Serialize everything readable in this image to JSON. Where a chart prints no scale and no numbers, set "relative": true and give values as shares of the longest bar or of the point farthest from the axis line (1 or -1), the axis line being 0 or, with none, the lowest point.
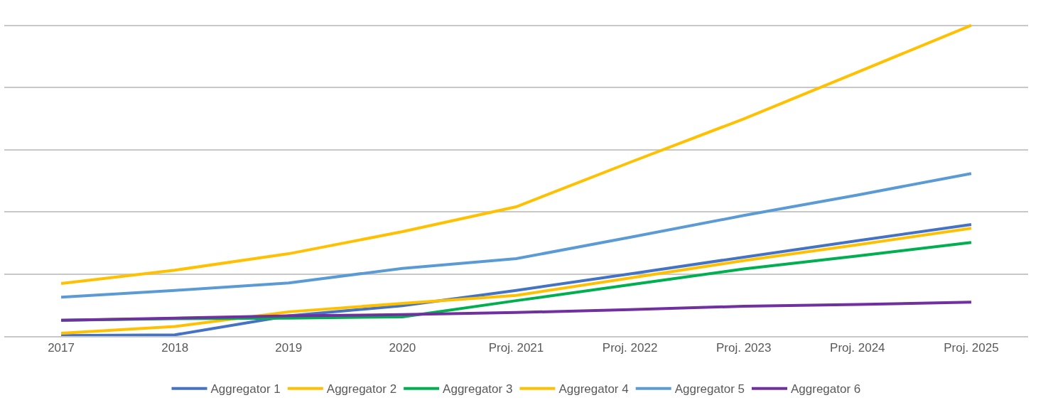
{
  "chart_data": {
    "type": "line",
    "relative": true,
    "grid": "y",
    "legend": "bottom",
    "marker": "none",
    "line_style": "solid",
    "categories": [
      "2017",
      "2018",
      "2019",
      "2020",
      "Proj. 2021",
      "Proj. 2022",
      "Proj. 2023",
      "Proj. 2024",
      "Proj. 2025"
    ],
    "series": [
      {
        "name": "Aggregator 1",
        "color": "#4472c4",
        "values": [
          0.002,
          0.004,
          0.065,
          0.098,
          0.147,
          0.2,
          0.254,
          0.307,
          0.359
        ]
      },
      {
        "name": "Aggregator 2",
        "color": "#ffc000",
        "values": [
          0.009,
          0.031,
          0.078,
          0.105,
          0.131,
          0.187,
          0.243,
          0.294,
          0.347
        ]
      },
      {
        "name": "Aggregator 3",
        "color": "#00b050",
        "values": [
          0.051,
          0.056,
          0.058,
          0.062,
          0.114,
          0.165,
          0.216,
          0.258,
          0.301
        ]
      },
      {
        "name": "Aggregator 4",
        "color": "#ffc000",
        "values": [
          0.169,
          0.212,
          0.265,
          0.336,
          0.416,
          0.559,
          0.699,
          0.849,
          1
        ]
      },
      {
        "name": "Aggregator 5",
        "color": "#5b9bd5",
        "values": [
          0.125,
          0.147,
          0.171,
          0.218,
          0.249,
          0.318,
          0.388,
          0.454,
          0.523
        ]
      },
      {
        "name": "Aggregator 6",
        "color": "#7030a0",
        "values": [
          0.051,
          0.058,
          0.065,
          0.069,
          0.076,
          0.085,
          0.096,
          0.102,
          0.109
        ]
      }
    ]
  }
}
